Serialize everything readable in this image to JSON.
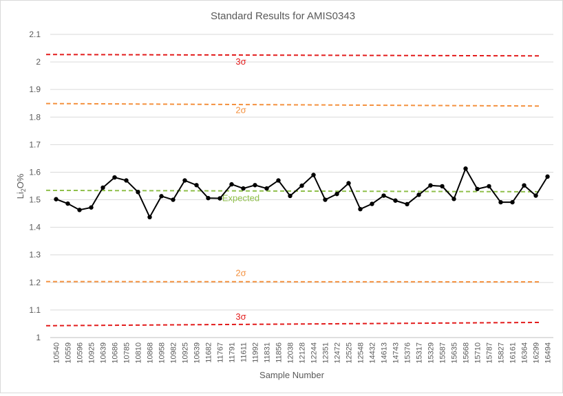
{
  "chart_data": {
    "type": "line",
    "title": "Standard Results for AMIS0343",
    "xlabel": "Sample Number",
    "ylabel": {
      "prefix": "Li",
      "subscript": "2",
      "suffix": "O%"
    },
    "ylim": [
      1,
      2.1
    ],
    "yticks": [
      "1",
      "1.1",
      "1.2",
      "1.3",
      "1.4",
      "1.5",
      "1.6",
      "1.7",
      "1.8",
      "1.9",
      "2",
      "2.1"
    ],
    "grid": "horizontal",
    "categories": [
      "10540",
      "10559",
      "10596",
      "10925",
      "10639",
      "10686",
      "10785",
      "10810",
      "10868",
      "10958",
      "10982",
      "10925",
      "10639",
      "11682",
      "11767",
      "11791",
      "11611",
      "11992",
      "11831",
      "11856",
      "12038",
      "12128",
      "12244",
      "12351",
      "12472",
      "12525",
      "12548",
      "14432",
      "14613",
      "14743",
      "15376",
      "15317",
      "15329",
      "15587",
      "15635",
      "15668",
      "15710",
      "15787",
      "15827",
      "16161",
      "16364",
      "16299",
      "16494"
    ],
    "series": [
      {
        "values": [
          1.502,
          1.486,
          1.463,
          1.472,
          1.544,
          1.581,
          1.57,
          1.528,
          1.437,
          1.513,
          1.5,
          1.57,
          1.553,
          1.506,
          1.505,
          1.556,
          1.541,
          1.553,
          1.541,
          1.57,
          1.514,
          1.551,
          1.59,
          1.5,
          1.521,
          1.56,
          1.466,
          1.485,
          1.515,
          1.497,
          1.484,
          1.518,
          1.552,
          1.549,
          1.503,
          1.613,
          1.539,
          1.549,
          1.491,
          1.491,
          1.552,
          1.515,
          1.584
        ],
        "color": "#000000"
      }
    ],
    "reference_lines": [
      {
        "label": "3σ",
        "start": 2.027,
        "end": 2.022,
        "color": "#e21b1b",
        "label_value": 2.0
      },
      {
        "label": "2σ",
        "start": 1.849,
        "end": 1.84,
        "color": "#f4913f",
        "label_value": 1.825
      },
      {
        "label": "Expected",
        "start": 1.534,
        "end": 1.529,
        "color": "#8fbf4a",
        "label_value": 1.505
      },
      {
        "label": "2σ",
        "start": 1.203,
        "end": 1.202,
        "color": "#f4913f",
        "label_value": 1.233
      },
      {
        "label": "3σ",
        "start": 1.043,
        "end": 1.055,
        "color": "#e21b1b",
        "label_value": 1.075
      }
    ]
  }
}
